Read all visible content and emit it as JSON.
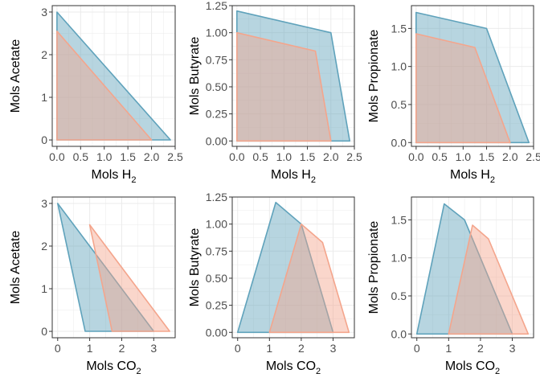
{
  "colors": {
    "blue": "#5fa2bb",
    "salmon": "#f4a58c",
    "grid": "#ebebeb",
    "frame": "#333333"
  },
  "chart_data": [
    {
      "type": "area",
      "xlabel": "Mols H",
      "xlabel_sub": "2",
      "ylabel": "Mols Acetate",
      "xlim": [
        -0.1,
        2.5
      ],
      "ylim": [
        -0.15,
        3.15
      ],
      "xticks": [
        0,
        0.5,
        1,
        1.5,
        2,
        2.5
      ],
      "xtick_labels": [
        "0.0",
        "0.5",
        "1.0",
        "1.5",
        "2.0",
        "2.5"
      ],
      "yticks": [
        0,
        1,
        2,
        3
      ],
      "ytick_labels": [
        "0",
        "1",
        "2",
        "3"
      ],
      "series": [
        {
          "color": "blue",
          "points": [
            [
              0,
              0
            ],
            [
              0,
              3.0
            ],
            [
              2.4,
              0
            ]
          ]
        },
        {
          "color": "salmon",
          "points": [
            [
              0,
              0
            ],
            [
              0,
              2.55
            ],
            [
              2.0,
              0
            ]
          ]
        }
      ]
    },
    {
      "type": "area",
      "xlabel": "Mols H",
      "xlabel_sub": "2",
      "ylabel": "Mols Butyrate",
      "xlim": [
        -0.1,
        2.5
      ],
      "ylim": [
        -0.05,
        1.25
      ],
      "xticks": [
        0,
        0.5,
        1,
        1.5,
        2,
        2.5
      ],
      "xtick_labels": [
        "0.0",
        "0.5",
        "1.0",
        "1.5",
        "2.0",
        "2.5"
      ],
      "yticks": [
        0,
        0.25,
        0.5,
        0.75,
        1,
        1.25
      ],
      "ytick_labels": [
        "0.00",
        "0.25",
        "0.50",
        "0.75",
        "1.00",
        "1.25"
      ],
      "series": [
        {
          "color": "blue",
          "points": [
            [
              0,
              0
            ],
            [
              0,
              1.2
            ],
            [
              2.0,
              1.0
            ],
            [
              2.4,
              0
            ]
          ]
        },
        {
          "color": "salmon",
          "points": [
            [
              0,
              0
            ],
            [
              0,
              1.0
            ],
            [
              1.67,
              0.83
            ],
            [
              2.0,
              0
            ]
          ]
        }
      ]
    },
    {
      "type": "area",
      "xlabel": "Mols H",
      "xlabel_sub": "2",
      "ylabel": "Mols Propionate",
      "xlim": [
        -0.1,
        2.5
      ],
      "ylim": [
        -0.05,
        1.8
      ],
      "xticks": [
        0,
        0.5,
        1,
        1.5,
        2,
        2.5
      ],
      "xtick_labels": [
        "0.0",
        "0.5",
        "1.0",
        "1.5",
        "2.0",
        "2.5"
      ],
      "yticks": [
        0,
        0.5,
        1,
        1.5
      ],
      "ytick_labels": [
        "0.0",
        "0.5",
        "1.0",
        "1.5"
      ],
      "series": [
        {
          "color": "blue",
          "points": [
            [
              0,
              0
            ],
            [
              0,
              1.71
            ],
            [
              1.5,
              1.5
            ],
            [
              2.4,
              0
            ]
          ]
        },
        {
          "color": "salmon",
          "points": [
            [
              0,
              0
            ],
            [
              0,
              1.43
            ],
            [
              1.25,
              1.25
            ],
            [
              2.0,
              0
            ]
          ]
        }
      ]
    },
    {
      "type": "area",
      "xlabel": "Mols CO",
      "xlabel_sub": "2",
      "ylabel": "Mols Acetate",
      "xlim": [
        -0.17,
        3.67
      ],
      "ylim": [
        -0.15,
        3.15
      ],
      "xticks": [
        0,
        1,
        2,
        3
      ],
      "xtick_labels": [
        "0",
        "1",
        "2",
        "3"
      ],
      "yticks": [
        0,
        1,
        2,
        3
      ],
      "ytick_labels": [
        "0",
        "1",
        "2",
        "3"
      ],
      "series": [
        {
          "color": "blue",
          "points": [
            [
              0,
              3.0
            ],
            [
              0.86,
              0
            ],
            [
              3.0,
              0
            ]
          ]
        },
        {
          "color": "salmon",
          "points": [
            [
              1.0,
              2.5
            ],
            [
              1.7,
              0
            ],
            [
              3.5,
              0
            ]
          ]
        }
      ]
    },
    {
      "type": "area",
      "xlabel": "Mols CO",
      "xlabel_sub": "2",
      "ylabel": "Mols Butyrate",
      "xlim": [
        -0.17,
        3.67
      ],
      "ylim": [
        -0.05,
        1.25
      ],
      "xticks": [
        0,
        1,
        2,
        3
      ],
      "xtick_labels": [
        "0",
        "1",
        "2",
        "3"
      ],
      "yticks": [
        0,
        0.25,
        0.5,
        0.75,
        1,
        1.25
      ],
      "ytick_labels": [
        "0.00",
        "0.25",
        "0.50",
        "0.75",
        "1.00",
        "1.25"
      ],
      "series": [
        {
          "color": "blue",
          "points": [
            [
              0,
              0
            ],
            [
              1.2,
              1.2
            ],
            [
              2.0,
              1.0
            ],
            [
              3.0,
              0
            ]
          ]
        },
        {
          "color": "salmon",
          "points": [
            [
              1.0,
              0
            ],
            [
              2.0,
              1.0
            ],
            [
              2.67,
              0.83
            ],
            [
              3.5,
              0
            ]
          ]
        }
      ]
    },
    {
      "type": "area",
      "xlabel": "Mols CO",
      "xlabel_sub": "2",
      "ylabel": "Mols Propionate",
      "xlim": [
        -0.17,
        3.67
      ],
      "ylim": [
        -0.05,
        1.8
      ],
      "xticks": [
        0,
        1,
        2,
        3
      ],
      "xtick_labels": [
        "0",
        "1",
        "2",
        "3"
      ],
      "yticks": [
        0,
        0.5,
        1,
        1.5
      ],
      "ytick_labels": [
        "0.0",
        "0.5",
        "1.0",
        "1.5"
      ],
      "series": [
        {
          "color": "blue",
          "points": [
            [
              0,
              0
            ],
            [
              0.86,
              1.71
            ],
            [
              1.5,
              1.5
            ],
            [
              3.0,
              0
            ]
          ]
        },
        {
          "color": "salmon",
          "points": [
            [
              1.0,
              0
            ],
            [
              1.75,
              1.43
            ],
            [
              2.25,
              1.25
            ],
            [
              3.5,
              0
            ]
          ]
        }
      ]
    }
  ]
}
